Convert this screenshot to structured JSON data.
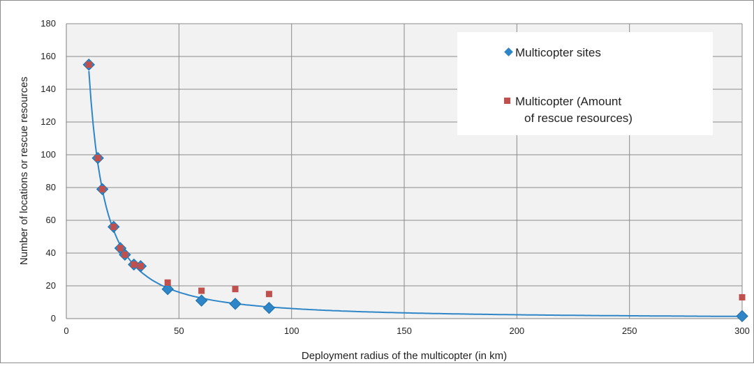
{
  "chart_data": {
    "type": "scatter",
    "title": "",
    "xlabel": "Deployment radius of the multicopter (in km)",
    "ylabel": "Number of locations or rescue resources",
    "xlim": [
      0,
      300
    ],
    "ylim": [
      0,
      180
    ],
    "x_ticks": [
      "0",
      "50",
      "100",
      "150",
      "200",
      "250",
      "300"
    ],
    "y_ticks": [
      "0",
      "20",
      "40",
      "60",
      "80",
      "100",
      "120",
      "140",
      "160",
      "180"
    ],
    "grid": true,
    "plot_background": "#f2f2f2",
    "legend_position": "top-right",
    "series": [
      {
        "name": "Multicopter sites",
        "marker": "diamond",
        "color": "#2e86c8",
        "points": [
          [
            10,
            155
          ],
          [
            14,
            98
          ],
          [
            16,
            79
          ],
          [
            21,
            56
          ],
          [
            24,
            43
          ],
          [
            26,
            39
          ],
          [
            30,
            33
          ],
          [
            33,
            32
          ],
          [
            45,
            18
          ],
          [
            60,
            11
          ],
          [
            75,
            9
          ],
          [
            90,
            6.5
          ],
          [
            300,
            1.5
          ]
        ]
      },
      {
        "name": "Multicopter (Amount of rescue resources)",
        "marker": "square",
        "color": "#c0504d",
        "points": [
          [
            10,
            155
          ],
          [
            14,
            98
          ],
          [
            16,
            79
          ],
          [
            21,
            56
          ],
          [
            24,
            43
          ],
          [
            26,
            39
          ],
          [
            30,
            33
          ],
          [
            33,
            32
          ],
          [
            45,
            22
          ],
          [
            60,
            17
          ],
          [
            75,
            18
          ],
          [
            90,
            15
          ],
          [
            300,
            13
          ]
        ]
      }
    ],
    "trendline": {
      "type": "power",
      "color": "#2e86c8",
      "x_from": 10,
      "x_to": 300
    }
  }
}
